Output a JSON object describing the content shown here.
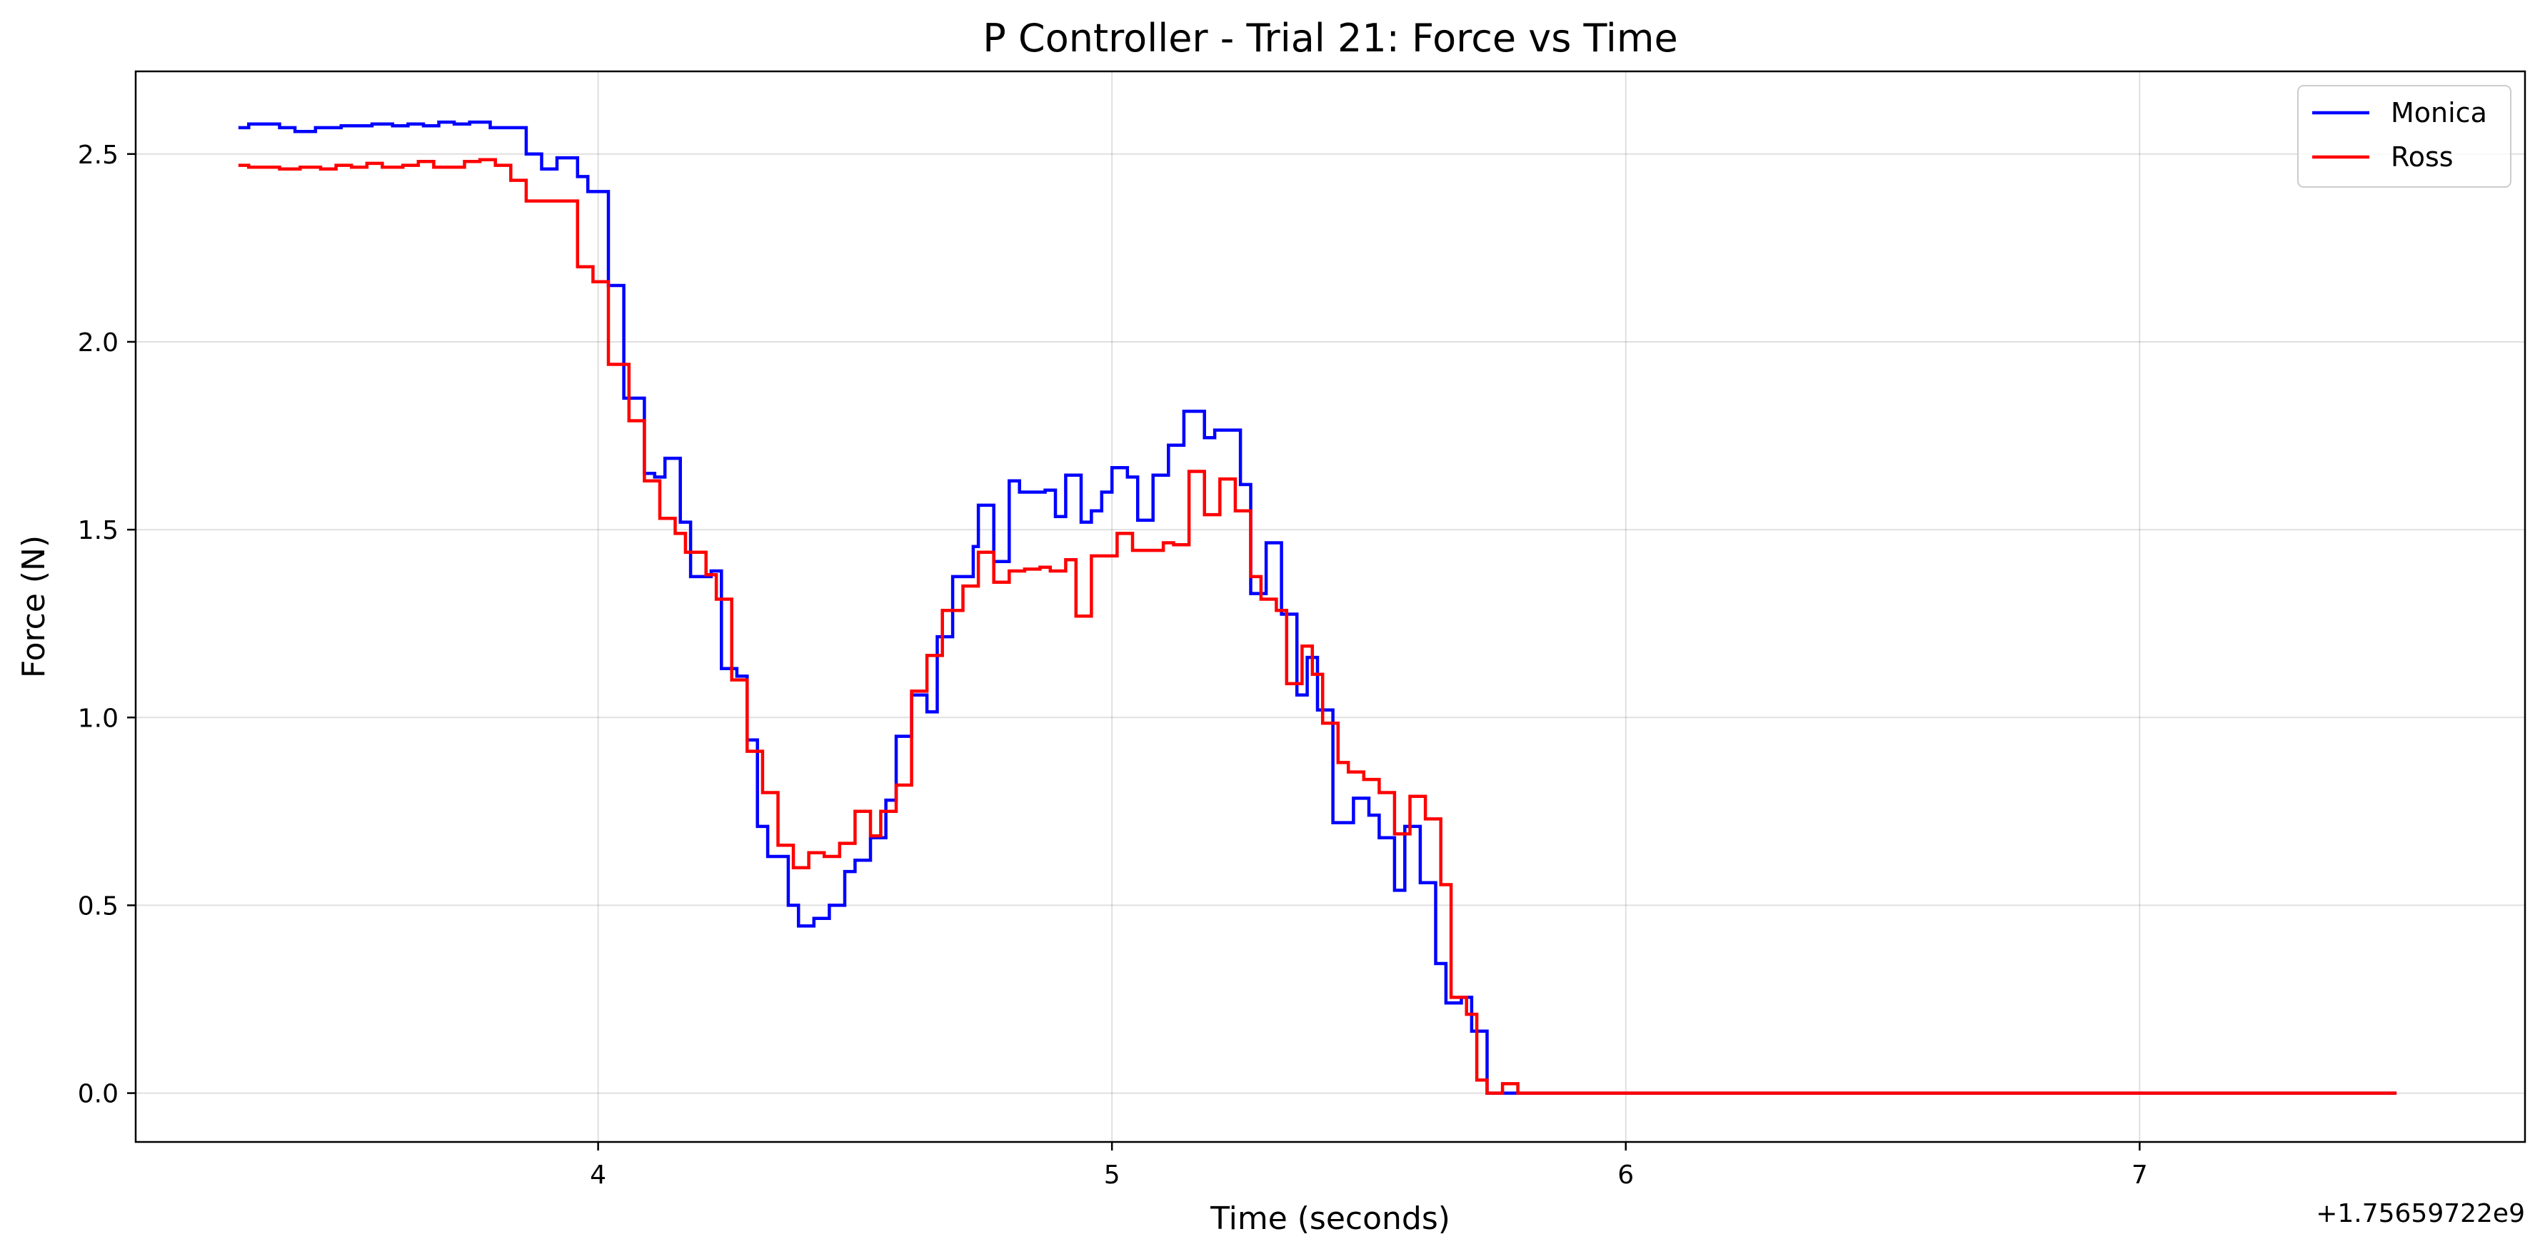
{
  "chart_data": {
    "type": "line",
    "step": true,
    "title": "P Controller - Trial 21: Force vs Time",
    "xlabel": "Time (seconds)",
    "ylabel": "Force (N)",
    "x_offset_label": "+1.75659722e9",
    "xlim": [
      3.1,
      7.75
    ],
    "ylim": [
      -0.13,
      2.72
    ],
    "xticks": [
      4,
      5,
      6,
      7
    ],
    "xtick_labels": [
      "4",
      "5",
      "6",
      "7"
    ],
    "yticks": [
      0.0,
      0.5,
      1.0,
      1.5,
      2.0,
      2.5
    ],
    "ytick_labels": [
      "0.0",
      "0.5",
      "1.0",
      "1.5",
      "2.0",
      "2.5"
    ],
    "grid": true,
    "legend_position": "top-right",
    "colors": {
      "Monica": "#0000ff",
      "Ross": "#ff0000"
    },
    "series": [
      {
        "name": "Monica",
        "color": "#0000ff",
        "points": [
          [
            3.3,
            2.57
          ],
          [
            3.32,
            2.58
          ],
          [
            3.36,
            2.58
          ],
          [
            3.38,
            2.57
          ],
          [
            3.41,
            2.56
          ],
          [
            3.45,
            2.57
          ],
          [
            3.5,
            2.575
          ],
          [
            3.56,
            2.58
          ],
          [
            3.6,
            2.575
          ],
          [
            3.63,
            2.58
          ],
          [
            3.66,
            2.575
          ],
          [
            3.69,
            2.585
          ],
          [
            3.72,
            2.58
          ],
          [
            3.75,
            2.585
          ],
          [
            3.79,
            2.57
          ],
          [
            3.86,
            2.5
          ],
          [
            3.89,
            2.46
          ],
          [
            3.92,
            2.49
          ],
          [
            3.96,
            2.44
          ],
          [
            3.98,
            2.4
          ],
          [
            4.02,
            2.15
          ],
          [
            4.05,
            1.85
          ],
          [
            4.09,
            1.65
          ],
          [
            4.11,
            1.64
          ],
          [
            4.13,
            1.69
          ],
          [
            4.16,
            1.52
          ],
          [
            4.18,
            1.375
          ],
          [
            4.22,
            1.39
          ],
          [
            4.24,
            1.13
          ],
          [
            4.27,
            1.11
          ],
          [
            4.29,
            0.94
          ],
          [
            4.31,
            0.71
          ],
          [
            4.33,
            0.63
          ],
          [
            4.37,
            0.5
          ],
          [
            4.39,
            0.445
          ],
          [
            4.42,
            0.465
          ],
          [
            4.45,
            0.5
          ],
          [
            4.48,
            0.59
          ],
          [
            4.5,
            0.62
          ],
          [
            4.53,
            0.68
          ],
          [
            4.56,
            0.78
          ],
          [
            4.58,
            0.95
          ],
          [
            4.61,
            1.06
          ],
          [
            4.64,
            1.015
          ],
          [
            4.66,
            1.215
          ],
          [
            4.69,
            1.375
          ],
          [
            4.73,
            1.455
          ],
          [
            4.74,
            1.565
          ],
          [
            4.77,
            1.415
          ],
          [
            4.8,
            1.63
          ],
          [
            4.82,
            1.6
          ],
          [
            4.87,
            1.605
          ],
          [
            4.89,
            1.535
          ],
          [
            4.91,
            1.645
          ],
          [
            4.94,
            1.52
          ],
          [
            4.96,
            1.55
          ],
          [
            4.98,
            1.6
          ],
          [
            5.0,
            1.665
          ],
          [
            5.03,
            1.64
          ],
          [
            5.05,
            1.525
          ],
          [
            5.08,
            1.645
          ],
          [
            5.11,
            1.725
          ],
          [
            5.14,
            1.815
          ],
          [
            5.18,
            1.745
          ],
          [
            5.2,
            1.765
          ],
          [
            5.25,
            1.62
          ],
          [
            5.27,
            1.33
          ],
          [
            5.3,
            1.465
          ],
          [
            5.33,
            1.275
          ],
          [
            5.36,
            1.06
          ],
          [
            5.38,
            1.16
          ],
          [
            5.4,
            1.02
          ],
          [
            5.43,
            0.72
          ],
          [
            5.47,
            0.785
          ],
          [
            5.5,
            0.74
          ],
          [
            5.52,
            0.68
          ],
          [
            5.55,
            0.54
          ],
          [
            5.57,
            0.71
          ],
          [
            5.6,
            0.56
          ],
          [
            5.63,
            0.345
          ],
          [
            5.65,
            0.24
          ],
          [
            5.68,
            0.255
          ],
          [
            5.7,
            0.165
          ],
          [
            5.73,
            0.0
          ],
          [
            5.76,
            0.0
          ],
          [
            7.5,
            0.0
          ]
        ]
      },
      {
        "name": "Ross",
        "color": "#ff0000",
        "points": [
          [
            3.3,
            2.47
          ],
          [
            3.32,
            2.465
          ],
          [
            3.38,
            2.46
          ],
          [
            3.42,
            2.465
          ],
          [
            3.46,
            2.46
          ],
          [
            3.49,
            2.47
          ],
          [
            3.52,
            2.465
          ],
          [
            3.55,
            2.475
          ],
          [
            3.58,
            2.465
          ],
          [
            3.62,
            2.47
          ],
          [
            3.65,
            2.48
          ],
          [
            3.68,
            2.465
          ],
          [
            3.74,
            2.48
          ],
          [
            3.77,
            2.485
          ],
          [
            3.8,
            2.47
          ],
          [
            3.83,
            2.43
          ],
          [
            3.86,
            2.375
          ],
          [
            3.93,
            2.375
          ],
          [
            3.96,
            2.2
          ],
          [
            3.99,
            2.16
          ],
          [
            4.02,
            1.94
          ],
          [
            4.06,
            1.79
          ],
          [
            4.09,
            1.63
          ],
          [
            4.12,
            1.53
          ],
          [
            4.15,
            1.49
          ],
          [
            4.17,
            1.44
          ],
          [
            4.21,
            1.38
          ],
          [
            4.23,
            1.315
          ],
          [
            4.26,
            1.1
          ],
          [
            4.29,
            0.91
          ],
          [
            4.32,
            0.8
          ],
          [
            4.35,
            0.66
          ],
          [
            4.38,
            0.6
          ],
          [
            4.41,
            0.64
          ],
          [
            4.44,
            0.63
          ],
          [
            4.47,
            0.665
          ],
          [
            4.5,
            0.75
          ],
          [
            4.53,
            0.685
          ],
          [
            4.55,
            0.75
          ],
          [
            4.58,
            0.82
          ],
          [
            4.61,
            1.07
          ],
          [
            4.64,
            1.165
          ],
          [
            4.67,
            1.285
          ],
          [
            4.71,
            1.35
          ],
          [
            4.74,
            1.44
          ],
          [
            4.77,
            1.36
          ],
          [
            4.8,
            1.39
          ],
          [
            4.83,
            1.395
          ],
          [
            4.86,
            1.4
          ],
          [
            4.88,
            1.39
          ],
          [
            4.91,
            1.42
          ],
          [
            4.93,
            1.27
          ],
          [
            4.96,
            1.43
          ],
          [
            5.01,
            1.49
          ],
          [
            5.04,
            1.445
          ],
          [
            5.1,
            1.465
          ],
          [
            5.12,
            1.46
          ],
          [
            5.15,
            1.655
          ],
          [
            5.18,
            1.54
          ],
          [
            5.21,
            1.635
          ],
          [
            5.24,
            1.55
          ],
          [
            5.27,
            1.375
          ],
          [
            5.29,
            1.315
          ],
          [
            5.32,
            1.285
          ],
          [
            5.34,
            1.09
          ],
          [
            5.37,
            1.19
          ],
          [
            5.39,
            1.115
          ],
          [
            5.41,
            0.985
          ],
          [
            5.44,
            0.88
          ],
          [
            5.46,
            0.855
          ],
          [
            5.49,
            0.835
          ],
          [
            5.52,
            0.8
          ],
          [
            5.55,
            0.69
          ],
          [
            5.58,
            0.79
          ],
          [
            5.61,
            0.73
          ],
          [
            5.64,
            0.555
          ],
          [
            5.66,
            0.255
          ],
          [
            5.69,
            0.21
          ],
          [
            5.71,
            0.035
          ],
          [
            5.73,
            0.0
          ],
          [
            5.76,
            0.025
          ],
          [
            5.79,
            0.0
          ],
          [
            7.5,
            0.0
          ]
        ]
      }
    ]
  }
}
